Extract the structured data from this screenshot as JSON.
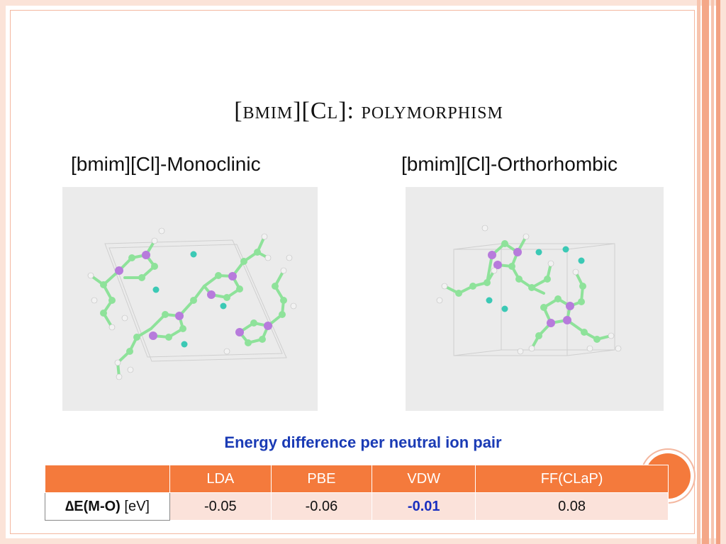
{
  "slide": {
    "title": "[bmim][Cl]: polymorphism",
    "left_subtitle": "[bmim][Cl]-Monoclinic",
    "right_subtitle": "[bmim][Cl]-Orthorhombic",
    "caption": "Energy difference per neutral ion pair"
  },
  "table": {
    "headers": [
      "",
      "LDA",
      "PBE",
      "VDW",
      "FF(CLaP)"
    ],
    "row_label_symbol": "∆",
    "row_label_bold": "E(M-O)",
    "row_label_unit": "[eV]",
    "values": [
      "-0.05",
      "-0.06",
      "-0.01",
      "0.08"
    ],
    "highlighted_value_color": "#1a2fbf"
  },
  "colors": {
    "accent_orange": "#f47a3c",
    "row_fill": "#fbe2da",
    "caption_blue": "#1a3bb5",
    "carbon": "#8ee29a",
    "nitrogen": "#b77bdc",
    "hydrogen": "#f2f2f2",
    "chloride": "#3bc9b5"
  }
}
